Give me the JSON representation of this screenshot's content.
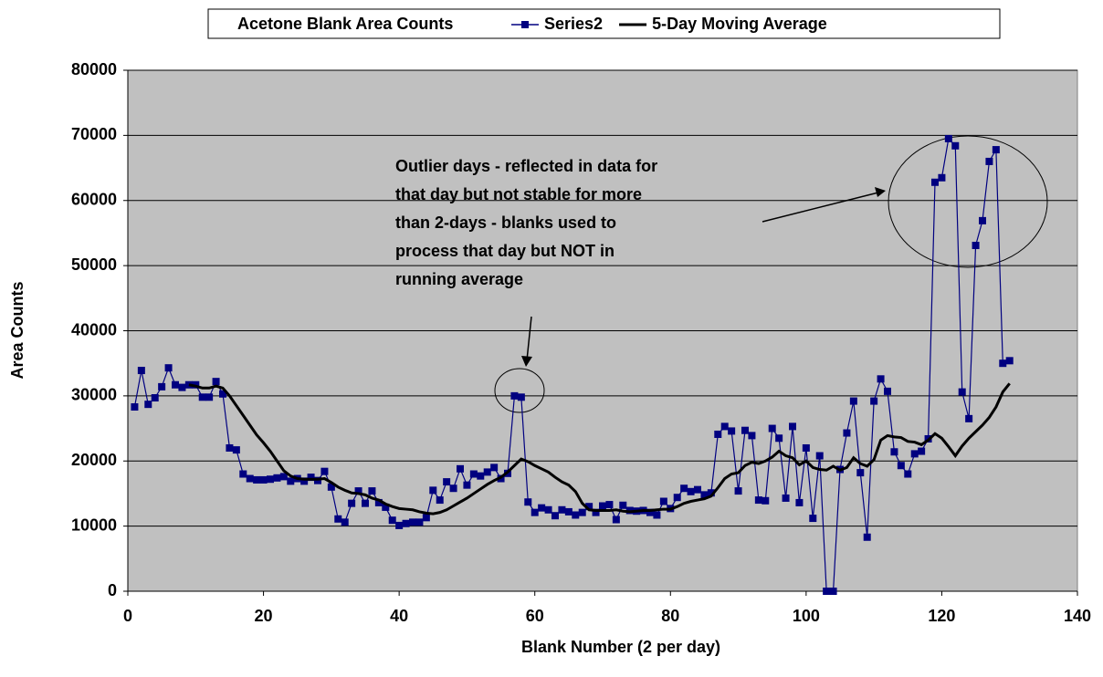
{
  "chart_data": {
    "type": "line",
    "title": "Acetone Blank Area Counts",
    "xlabel": "Blank Number (2 per day)",
    "ylabel": "Area Counts",
    "annotation": [
      "Outlier days - reflected in data for",
      "that day but not stable for more",
      "than 2-days - blanks used to",
      "process that day but NOT in",
      "running average"
    ],
    "x": [
      1,
      2,
      3,
      4,
      5,
      6,
      7,
      8,
      9,
      10,
      11,
      12,
      13,
      14,
      15,
      16,
      17,
      18,
      19,
      20,
      21,
      22,
      23,
      24,
      25,
      26,
      27,
      28,
      29,
      30,
      31,
      32,
      33,
      34,
      35,
      36,
      37,
      38,
      39,
      40,
      41,
      42,
      43,
      44,
      45,
      46,
      47,
      48,
      49,
      50,
      51,
      52,
      53,
      54,
      55,
      56,
      57,
      58,
      59,
      60,
      61,
      62,
      63,
      64,
      65,
      66,
      67,
      68,
      69,
      70,
      71,
      72,
      73,
      74,
      75,
      76,
      77,
      78,
      79,
      80,
      81,
      82,
      83,
      84,
      85,
      86,
      87,
      88,
      89,
      90,
      91,
      92,
      93,
      94,
      95,
      96,
      97,
      98,
      99,
      100,
      101,
      102,
      103,
      104,
      105,
      106,
      107,
      108,
      109,
      110,
      111,
      112,
      113,
      114,
      115,
      116,
      117,
      118,
      119,
      120,
      121,
      122,
      123,
      124,
      125,
      126,
      127,
      128,
      129,
      130
    ],
    "series": [
      {
        "name": "Series2",
        "color": "#000080",
        "marker": true,
        "values": [
          28300,
          33900,
          28700,
          29700,
          31400,
          34300,
          31700,
          31300,
          31700,
          31700,
          29800,
          29800,
          32200,
          30300,
          22000,
          21700,
          18000,
          17300,
          17100,
          17100,
          17200,
          17400,
          17600,
          16900,
          17300,
          16900,
          17500,
          17000,
          18400,
          16000,
          11100,
          10600,
          13500,
          15400,
          13500,
          15400,
          13600,
          12900,
          10900,
          10100,
          10400,
          10600,
          10600,
          11300,
          15500,
          14000,
          16800,
          15800,
          18800,
          16300,
          18000,
          17700,
          18300,
          19000,
          17300,
          18100,
          30000,
          29800,
          13700,
          12100,
          12800,
          12500,
          11600,
          12500,
          12200,
          11700,
          12100,
          13000,
          12100,
          13100,
          13300,
          11000,
          13200,
          12400,
          12300,
          12400,
          12100,
          11700,
          13800,
          12700,
          14400,
          15800,
          15300,
          15600,
          14800,
          15100,
          24100,
          25300,
          24600,
          15400,
          24700,
          23900,
          14000,
          13900,
          25000,
          23500,
          14300,
          25300,
          13600,
          22000,
          11200,
          20800,
          0,
          0,
          18700,
          24300,
          29200,
          18200,
          8300,
          29200,
          32600,
          30700,
          21400,
          19300,
          18000,
          21100,
          21500,
          23400,
          62800,
          63500,
          69500,
          68400,
          30600,
          26500,
          53100,
          56900,
          66000,
          67800,
          35000,
          35400
        ]
      },
      {
        "name": "5-Day Moving Average",
        "color": "#000000",
        "marker": false,
        "values": [
          null,
          null,
          null,
          null,
          null,
          null,
          null,
          null,
          31700,
          31500,
          31200,
          31200,
          31500,
          31200,
          30000,
          28500,
          27000,
          25500,
          24000,
          22800,
          21500,
          20000,
          18500,
          17700,
          17300,
          17200,
          17200,
          17200,
          17300,
          16700,
          16000,
          15500,
          15100,
          15000,
          14800,
          14300,
          14000,
          13400,
          13000,
          12700,
          12600,
          12500,
          12200,
          12000,
          11900,
          12100,
          12500,
          13100,
          13700,
          14300,
          15000,
          15700,
          16400,
          17000,
          17500,
          18300,
          19300,
          20300,
          19900,
          19300,
          18800,
          18300,
          17500,
          16800,
          16300,
          15300,
          13500,
          12500,
          12400,
          12400,
          12400,
          12500,
          12300,
          12200,
          12300,
          12400,
          12400,
          12500,
          12600,
          12600,
          13000,
          13500,
          13800,
          14000,
          14200,
          14600,
          15900,
          17300,
          18000,
          18200,
          19300,
          19800,
          19600,
          20000,
          20600,
          21500,
          20800,
          20500,
          19400,
          20000,
          19000,
          18700,
          18600,
          19200,
          18600,
          19000,
          20500,
          19600,
          19200,
          20200,
          23200,
          23900,
          23700,
          23600,
          23000,
          22900,
          22500,
          23200,
          24200,
          23500,
          22200,
          20800,
          22300,
          23500,
          24500,
          25500,
          26700,
          28300,
          30600,
          31900
        ]
      }
    ],
    "xlim": [
      0,
      140
    ],
    "xticks": [
      0,
      20,
      40,
      60,
      80,
      100,
      120,
      140
    ],
    "ylim": [
      0,
      80000
    ],
    "yticks": [
      0,
      10000,
      20000,
      30000,
      40000,
      50000,
      60000,
      70000,
      80000
    ],
    "grid": true,
    "legend": "top",
    "background": "#c0c0c0"
  }
}
